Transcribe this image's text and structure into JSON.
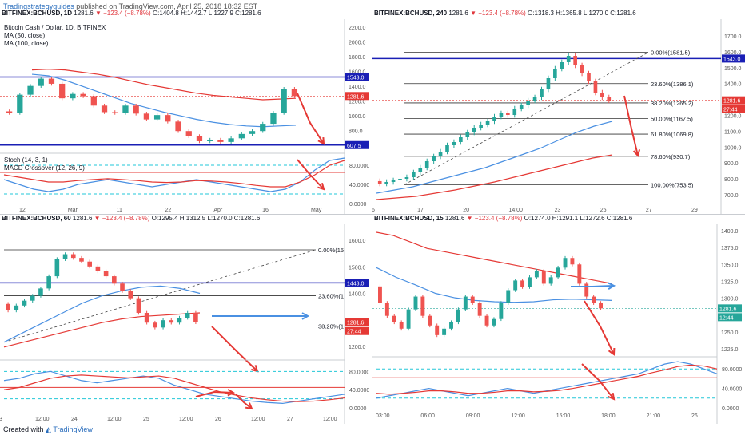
{
  "header": {
    "author": "Tradingstrategyguides",
    "published": "published on TradingView.com, April 25, 2018 18:32 EST"
  },
  "footer": {
    "created_with": "Created with",
    "brand": "TradingView"
  },
  "colors": {
    "candle_up": "#26a69a",
    "candle_down": "#ef5350",
    "ma50": "#4a90e2",
    "ma100": "#e53935",
    "level_line": "#1a1fb5",
    "price_tag": "#e53935",
    "cyan_dash": "#22c7d8",
    "fib": "#333333"
  },
  "panels": [
    {
      "id": "daily",
      "sym": "BITFINEX:BCHUSD, 1D",
      "price": "1281.6",
      "change": "▼ −123.4 (−8.78%)",
      "ohlc": "O:1404.8 H:1442.7 L:1227.9 C:1281.6",
      "indicators": [
        "Bitcoin Cash / Dollar, 1D, BITFINEX",
        "MA (50, close)",
        "MA (100, close)"
      ],
      "sub_indicators": [
        "Stoch (14, 3, 1)",
        "MACD Crossover (12, 26, 9)"
      ],
      "price_axis": [
        "2200.0",
        "2000.0",
        "1800.0",
        "1600.0",
        "1400.0",
        "1200.0",
        "1000.0",
        "800.0",
        "600.0"
      ],
      "sub_axis": [
        "80.0000",
        "40.0000",
        "0.0000"
      ],
      "time_axis": [
        "12",
        "Mar",
        "11",
        "22",
        "Apr",
        "16",
        "May"
      ],
      "tags": [
        {
          "label": "1543.0",
          "color": "#1a1fb5"
        },
        {
          "label": "1281.6",
          "color": "#e53935"
        },
        {
          "label": "607.5",
          "color": "#1a1fb5"
        }
      ]
    },
    {
      "id": "h4",
      "sym": "BITFINEX:BCHUSD, 240",
      "price": "1281.6",
      "change": "▼ −123.4 (−8.78%)",
      "ohlc": "O:1318.3 H:1365.8 L:1270.0 C:1281.6",
      "price_axis": [
        "1700.0",
        "1600.0",
        "1500.0",
        "1400.0",
        "1300.0",
        "1200.0",
        "1100.0",
        "1000.0",
        "900.0",
        "800.0",
        "700.0"
      ],
      "time_axis": [
        "6",
        "17",
        "20",
        "14:00",
        "23",
        "25",
        "27",
        "29"
      ],
      "fib_levels": [
        {
          "label": "0.00%(1581.5)"
        },
        {
          "label": "23.60%(1386.1)"
        },
        {
          "label": "38.20%(1265.2)"
        },
        {
          "label": "50.00%(1167.5)"
        },
        {
          "label": "61.80%(1069.8)"
        },
        {
          "label": "78.60%(930.7)"
        },
        {
          "label": "100.00%(753.5)"
        }
      ],
      "tags": [
        {
          "label": "1543.0",
          "color": "#1a1fb5"
        },
        {
          "label": "1281.6",
          "color": "#e53935"
        },
        {
          "label": "27:44",
          "color": "#e53935"
        }
      ]
    },
    {
      "id": "h1",
      "sym": "BITFINEX:BCHUSD, 60",
      "price": "1281.6",
      "change": "▼ −123.4 (−8.78%)",
      "ohlc": "O:1295.4 H:1312.5 L:1270.0 C:1281.6",
      "price_axis": [
        "1600.0",
        "1500.0",
        "1400.0",
        "1300.0",
        "1200.0"
      ],
      "sub_axis": [
        "80.0000",
        "40.0000",
        "0.0000"
      ],
      "time_axis": [
        "3",
        "12:00",
        "24",
        "12:00",
        "25",
        "12:00",
        "26",
        "12:00",
        "27",
        "12:00"
      ],
      "fib_levels": [
        {
          "label": "0.00%(15"
        },
        {
          "label": "23.60%(1"
        },
        {
          "label": "38.20%(1"
        }
      ],
      "tags": [
        {
          "label": "1443.0",
          "color": "#1a1fb5"
        },
        {
          "label": "1281.6",
          "color": "#e53935"
        },
        {
          "label": "27:44",
          "color": "#e53935"
        }
      ]
    },
    {
      "id": "m15",
      "sym": "BITFINEX:BCHUSD, 15",
      "price": "1281.6",
      "change": "▼ −123.4 (−8.78%)",
      "ohlc": "O:1274.0 H:1291.1 L:1272.6 C:1281.6",
      "price_axis": [
        "1400.0",
        "1375.0",
        "1350.0",
        "1325.0",
        "1300.0",
        "1275.0",
        "1250.0",
        "1225.0"
      ],
      "sub_axis": [
        "80.0000",
        "40.0000",
        "0.0000"
      ],
      "time_axis": [
        "03:00",
        "06:00",
        "09:00",
        "12:00",
        "15:00",
        "18:00",
        "21:00",
        "26"
      ],
      "tags": [
        {
          "label": "1281.6",
          "color": "#26a69a"
        },
        {
          "label": "12:44",
          "color": "#26a69a"
        }
      ]
    }
  ],
  "chart_data": [
    {
      "type": "candlestick",
      "title": "BITFINEX:BCHUSD, 1D",
      "x_ticks": [
        "12",
        "Mar",
        "11",
        "22",
        "Apr",
        "16",
        "May"
      ],
      "ylim": [
        550,
        2250
      ],
      "levels": {
        "resistance": 1543.0,
        "support": 607.5,
        "last": 1281.6
      },
      "series": [
        {
          "name": "MA (50, close)",
          "values": [
            1580,
            1560,
            1500,
            1420,
            1340,
            1260,
            1180,
            1120,
            1060,
            1010,
            960,
            920,
            890,
            870,
            860,
            870,
            880
          ]
        },
        {
          "name": "MA (100, close)",
          "values": [
            1640,
            1650,
            1640,
            1610,
            1580,
            1540,
            1490,
            1440,
            1400,
            1360,
            1320,
            1290,
            1270,
            1250,
            1230,
            1240,
            1250
          ]
        }
      ],
      "close": [
        1050,
        1300,
        1420,
        1520,
        1450,
        1250,
        1310,
        1280,
        1150,
        1060,
        1050,
        1150,
        1040,
        960,
        1020,
        930,
        800,
        730,
        660,
        680,
        650,
        700,
        760,
        800,
        900,
        1050,
        1380,
        1281.6
      ]
    },
    {
      "type": "candlestick",
      "title": "BITFINEX:BCHUSD, 240",
      "ylim": [
        650,
        1750
      ],
      "levels": {
        "resistance": 1543.0,
        "last": 1281.6
      },
      "fib": [
        1581.5,
        1386.1,
        1265.2,
        1167.5,
        1069.8,
        930.7,
        753.5
      ],
      "close": [
        760,
        770,
        780,
        790,
        800,
        830,
        860,
        900,
        930,
        960,
        1000,
        1020,
        1050,
        1080,
        1110,
        1130,
        1150,
        1180,
        1200,
        1190,
        1230,
        1250,
        1280,
        1300,
        1350,
        1420,
        1480,
        1520,
        1560,
        1500,
        1450,
        1400,
        1330,
        1300,
        1281.6
      ]
    },
    {
      "type": "candlestick",
      "title": "BITFINEX:BCHUSD, 60",
      "ylim": [
        1150,
        1650
      ],
      "levels": {
        "resistance": 1443.0,
        "last": 1281.6
      },
      "close": [
        1330,
        1350,
        1370,
        1390,
        1420,
        1470,
        1540,
        1560,
        1545,
        1530,
        1510,
        1490,
        1470,
        1440,
        1410,
        1380,
        1320,
        1280,
        1260,
        1290,
        1280,
        1300,
        1320,
        1281.6
      ]
    },
    {
      "type": "candlestick",
      "title": "BITFINEX:BCHUSD, 15",
      "ylim": [
        1210,
        1405
      ],
      "levels": {
        "last": 1281.6
      },
      "close": [
        1290,
        1270,
        1260,
        1250,
        1280,
        1300,
        1270,
        1255,
        1240,
        1250,
        1260,
        1280,
        1300,
        1290,
        1270,
        1255,
        1265,
        1290,
        1310,
        1325,
        1315,
        1330,
        1340,
        1320,
        1330,
        1345,
        1360,
        1350,
        1320,
        1300,
        1290,
        1281.6
      ]
    }
  ]
}
